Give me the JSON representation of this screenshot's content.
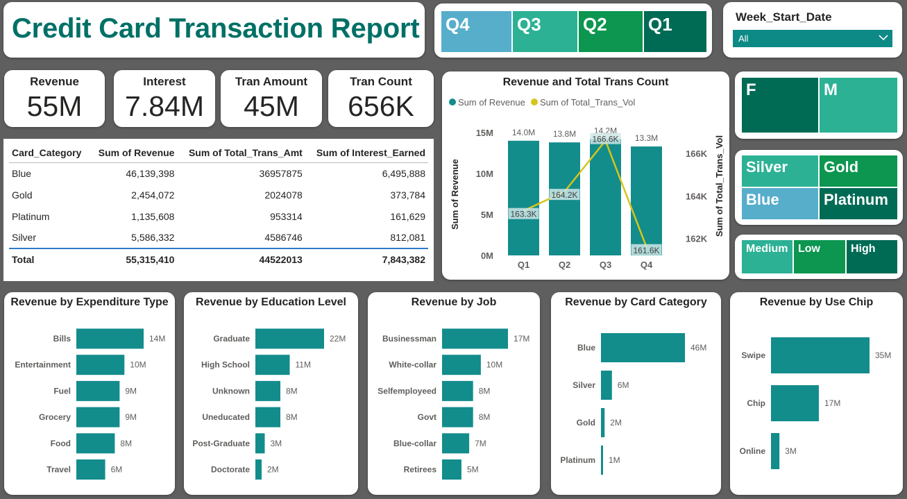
{
  "report_title": "Credit Card Transaction Report",
  "quarter_slicer": {
    "items": [
      "Q4",
      "Q3",
      "Q2",
      "Q1"
    ],
    "colors": [
      "#56aecb",
      "#2cb195",
      "#0c9650",
      "#006b55"
    ]
  },
  "week_slicer": {
    "label": "Week_Start_Date",
    "selected": "All"
  },
  "kpis": [
    {
      "title": "Revenue",
      "value": "55M"
    },
    {
      "title": "Interest",
      "value": "7.84M"
    },
    {
      "title": "Tran Amount",
      "value": "45M"
    },
    {
      "title": "Tran Count",
      "value": "656K"
    }
  ],
  "table": {
    "columns": [
      "Card_Category",
      "Sum of Revenue",
      "Sum of Total_Trans_Amt",
      "Sum of Interest_Earned"
    ],
    "rows": [
      [
        "Blue",
        "46,139,398",
        "36957875",
        "6,495,888"
      ],
      [
        "Gold",
        "2,454,072",
        "2024078",
        "373,784"
      ],
      [
        "Platinum",
        "1,135,608",
        "953314",
        "161,629"
      ],
      [
        "Silver",
        "5,586,332",
        "4586746",
        "812,081"
      ]
    ],
    "total": [
      "Total",
      "55,315,410",
      "44522013",
      "7,843,382"
    ]
  },
  "gender_slicer": {
    "items": [
      "F",
      "M"
    ],
    "colors": [
      "#006b55",
      "#2cb195"
    ]
  },
  "category_slicer": {
    "items": [
      "Silver",
      "Gold",
      "Blue",
      "Platinum"
    ],
    "colors": [
      "#2cb195",
      "#0c9650",
      "#56aecb",
      "#006b55"
    ]
  },
  "income_slicer": {
    "items": [
      "Medium",
      "Low",
      "High"
    ],
    "colors": [
      "#2cb195",
      "#0c9650",
      "#006b55"
    ]
  },
  "chart_data": [
    {
      "type": "combo",
      "title": "Revenue and Total Trans Count",
      "legend": [
        "Sum of Revenue",
        "Sum of Total_Trans_Vol"
      ],
      "legend_position": "top-left",
      "colors": {
        "bar": "#138c8c",
        "line": "#d6c51b"
      },
      "categories": [
        "Q1",
        "Q2",
        "Q3",
        "Q4"
      ],
      "series": [
        {
          "name": "Sum of Revenue",
          "values": [
            14.0,
            13.8,
            14.2,
            13.3
          ],
          "labels": [
            "14.0M",
            "13.8M",
            "14.2M",
            "13.3M"
          ],
          "axis": "left"
        },
        {
          "name": "Sum of Total_Trans_Vol",
          "values": [
            163.3,
            164.2,
            166.6,
            161.6
          ],
          "labels": [
            "163.3K",
            "164.2K",
            "166.6K",
            "161.6K"
          ],
          "axis": "right"
        }
      ],
      "ylabel": "Sum of Revenue",
      "y2label": "Sum of Total_Trans_Vol",
      "y_ticks": [
        "0M",
        "5M",
        "10M",
        "15M"
      ],
      "ylim": [
        0,
        15
      ],
      "y2_ticks": [
        "162K",
        "164K",
        "166K"
      ],
      "y2_tick_values": [
        162,
        164,
        166
      ],
      "y2lim": [
        161.2,
        166.98
      ]
    },
    {
      "type": "bar",
      "orientation": "horizontal",
      "title": "Revenue by Expenditure Type",
      "categories": [
        "Bills",
        "Entertainment",
        "Fuel",
        "Grocery",
        "Food",
        "Travel"
      ],
      "values": [
        14,
        10,
        9,
        9,
        8,
        6
      ],
      "labels": [
        "14M",
        "10M",
        "9M",
        "9M",
        "8M",
        "6M"
      ]
    },
    {
      "type": "bar",
      "orientation": "horizontal",
      "title": "Revenue by Education Level",
      "categories": [
        "Graduate",
        "High School",
        "Unknown",
        "Uneducated",
        "Post-Graduate",
        "Doctorate"
      ],
      "values": [
        22,
        11,
        8,
        8,
        3,
        2
      ],
      "labels": [
        "22M",
        "11M",
        "8M",
        "8M",
        "3M",
        "2M"
      ]
    },
    {
      "type": "bar",
      "orientation": "horizontal",
      "title": "Revenue by Job",
      "categories": [
        "Businessman",
        "White-collar",
        "Selfemployeed",
        "Govt",
        "Blue-collar",
        "Retirees"
      ],
      "values": [
        17,
        10,
        8,
        8,
        7,
        5
      ],
      "labels": [
        "17M",
        "10M",
        "8M",
        "8M",
        "7M",
        "5M"
      ]
    },
    {
      "type": "bar",
      "orientation": "horizontal",
      "title": "Revenue by Card Category",
      "categories": [
        "Blue",
        "Silver",
        "Gold",
        "Platinum"
      ],
      "values": [
        46,
        6,
        2,
        1
      ],
      "labels": [
        "46M",
        "6M",
        "2M",
        "1M"
      ]
    },
    {
      "type": "bar",
      "orientation": "horizontal",
      "title": "Revenue by Use Chip",
      "categories": [
        "Swipe",
        "Chip",
        "Online"
      ],
      "values": [
        35,
        17,
        3
      ],
      "labels": [
        "35M",
        "17M",
        "3M"
      ]
    }
  ]
}
